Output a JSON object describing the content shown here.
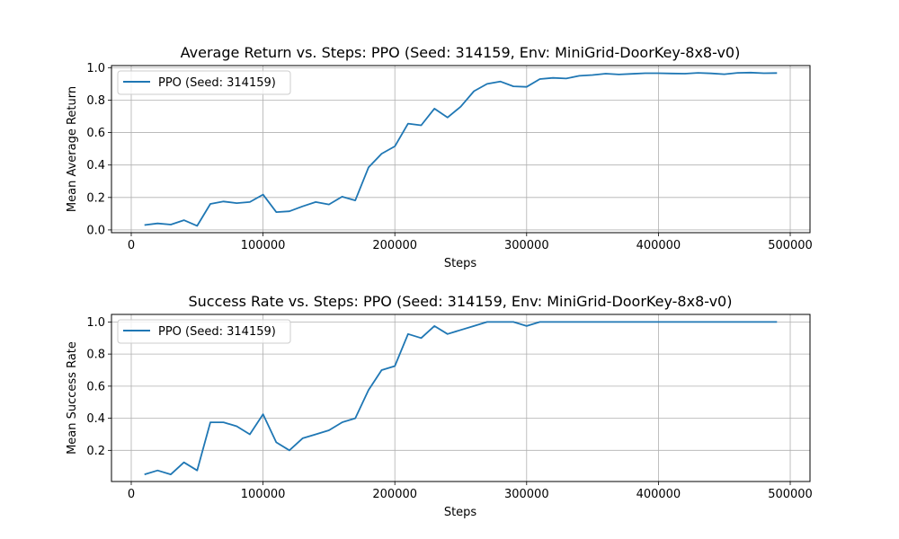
{
  "chart_data": [
    {
      "type": "line",
      "title": "Average Return vs. Steps: PPO (Seed: 314159, Env: MiniGrid-DoorKey-8x8-v0)",
      "xlabel": "Steps",
      "ylabel": "Mean Average Return",
      "xlim": [
        -15000,
        515000
      ],
      "ylim": [
        -0.017,
        1.013
      ],
      "xticks": [
        0,
        100000,
        200000,
        300000,
        400000,
        500000
      ],
      "yticks": [
        0.0,
        0.2,
        0.4,
        0.6,
        0.8,
        1.0
      ],
      "ytick_labels": [
        "0.0",
        "0.2",
        "0.4",
        "0.6",
        "0.8",
        "1.0"
      ],
      "grid": true,
      "legend_position": "top-left",
      "series": [
        {
          "name": "PPO (Seed: 314159)",
          "color": "#1f77b4",
          "x": [
            10000,
            20000,
            30000,
            40000,
            50000,
            60000,
            70000,
            80000,
            90000,
            100000,
            110000,
            120000,
            130000,
            140000,
            150000,
            160000,
            170000,
            180000,
            190000,
            200000,
            210000,
            220000,
            230000,
            240000,
            250000,
            260000,
            270000,
            280000,
            290000,
            300000,
            310000,
            320000,
            330000,
            340000,
            350000,
            360000,
            370000,
            380000,
            390000,
            400000,
            410000,
            420000,
            430000,
            440000,
            450000,
            460000,
            470000,
            480000,
            490000
          ],
          "y": [
            0.03,
            0.04,
            0.033,
            0.06,
            0.025,
            0.16,
            0.175,
            0.165,
            0.172,
            0.218,
            0.11,
            0.115,
            0.145,
            0.172,
            0.157,
            0.205,
            0.182,
            0.385,
            0.47,
            0.515,
            0.655,
            0.645,
            0.748,
            0.693,
            0.76,
            0.855,
            0.9,
            0.915,
            0.885,
            0.882,
            0.93,
            0.937,
            0.933,
            0.95,
            0.955,
            0.963,
            0.958,
            0.962,
            0.966,
            0.966,
            0.964,
            0.963,
            0.968,
            0.965,
            0.96,
            0.968,
            0.97,
            0.966,
            0.967
          ]
        }
      ]
    },
    {
      "type": "line",
      "title": "Success Rate vs. Steps: PPO (Seed: 314159, Env: MiniGrid-DoorKey-8x8-v0)",
      "xlabel": "Steps",
      "ylabel": "Mean Success Rate",
      "xlim": [
        -15000,
        515000
      ],
      "ylim": [
        0.006,
        1.047
      ],
      "xticks": [
        0,
        100000,
        200000,
        300000,
        400000,
        500000
      ],
      "yticks": [
        0.2,
        0.4,
        0.6,
        0.8,
        1.0
      ],
      "ytick_labels": [
        "0.2",
        "0.4",
        "0.6",
        "0.8",
        "1.0"
      ],
      "grid": true,
      "legend_position": "top-left",
      "series": [
        {
          "name": "PPO (Seed: 314159)",
          "color": "#1f77b4",
          "x": [
            10000,
            20000,
            30000,
            40000,
            50000,
            60000,
            70000,
            80000,
            90000,
            100000,
            110000,
            120000,
            130000,
            140000,
            150000,
            160000,
            170000,
            180000,
            190000,
            200000,
            210000,
            220000,
            230000,
            240000,
            250000,
            260000,
            270000,
            280000,
            290000,
            300000,
            310000,
            320000,
            330000,
            340000,
            350000,
            360000,
            370000,
            380000,
            390000,
            400000,
            410000,
            420000,
            430000,
            440000,
            450000,
            460000,
            470000,
            480000,
            490000
          ],
          "y": [
            0.05,
            0.075,
            0.05,
            0.125,
            0.075,
            0.375,
            0.375,
            0.35,
            0.3,
            0.425,
            0.25,
            0.2,
            0.275,
            0.3,
            0.325,
            0.375,
            0.4,
            0.575,
            0.7,
            0.725,
            0.925,
            0.9,
            0.975,
            0.925,
            0.95,
            0.975,
            1.0,
            1.0,
            1.0,
            0.975,
            1.0,
            1.0,
            1.0,
            1.0,
            1.0,
            1.0,
            1.0,
            1.0,
            1.0,
            1.0,
            1.0,
            1.0,
            1.0,
            1.0,
            1.0,
            1.0,
            1.0,
            1.0,
            1.0
          ]
        }
      ]
    }
  ]
}
